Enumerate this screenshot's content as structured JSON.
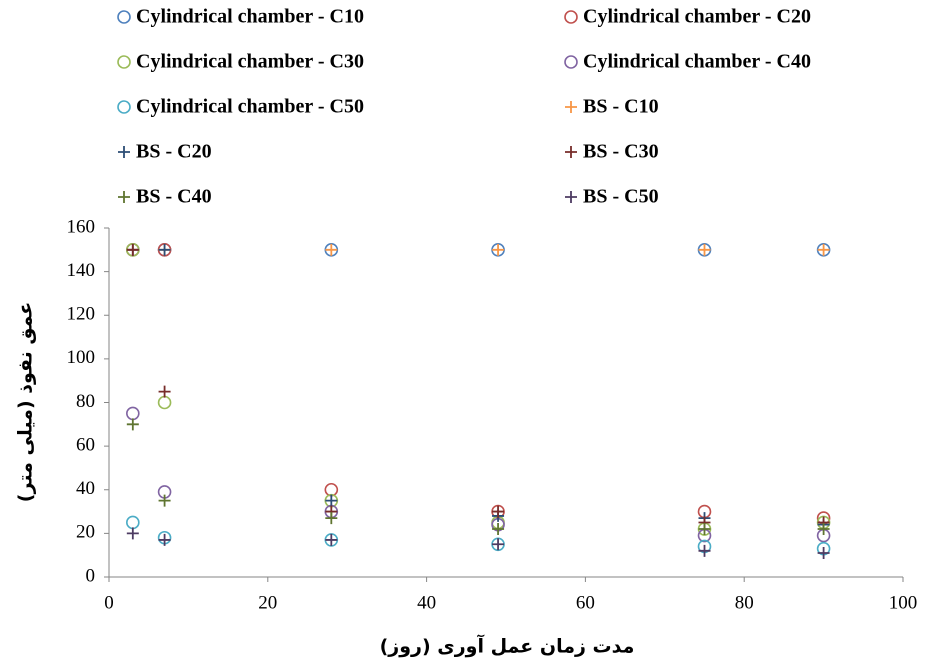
{
  "chart_data": {
    "type": "scatter",
    "x_label": "مدت زمان عمل آوری (روز)",
    "y_label": "عمق نفوذ (میلی متر)",
    "x": [
      3,
      7,
      28,
      49,
      75,
      90
    ],
    "xlim": [
      0,
      100
    ],
    "xticks": [
      0,
      20,
      40,
      60,
      80,
      100
    ],
    "ylim": [
      0,
      160
    ],
    "yticks": [
      0,
      20,
      40,
      60,
      80,
      100,
      120,
      140,
      160
    ],
    "grid": false,
    "legend": "top",
    "series": [
      {
        "name": "Cylindrical chamber - C10",
        "color": "#4f81bd",
        "marker": "circle",
        "values": [
          150,
          150,
          150,
          150,
          150,
          150
        ]
      },
      {
        "name": "Cylindrical chamber - C20",
        "color": "#c0504d",
        "marker": "circle",
        "values": [
          150,
          150,
          40,
          30,
          30,
          27
        ]
      },
      {
        "name": "Cylindrical chamber - C30",
        "color": "#9bbb59",
        "marker": "circle",
        "values": [
          150,
          80,
          35,
          25,
          22,
          25
        ]
      },
      {
        "name": "Cylindrical chamber - C40",
        "color": "#8064a2",
        "marker": "circle",
        "values": [
          75,
          39,
          30,
          24,
          19,
          19
        ]
      },
      {
        "name": "Cylindrical chamber - C50",
        "color": "#4bacc6",
        "marker": "circle",
        "values": [
          25,
          18,
          17,
          15,
          14,
          13
        ]
      },
      {
        "name": "BS - C10",
        "color": "#f79646",
        "marker": "plus",
        "values": [
          150,
          150,
          150,
          150,
          150,
          150
        ]
      },
      {
        "name": "BS - C20",
        "color": "#2c4d75",
        "marker": "plus",
        "values": [
          150,
          150,
          35,
          28,
          27,
          24
        ]
      },
      {
        "name": "BS - C30",
        "color": "#772c2a",
        "marker": "plus",
        "values": [
          150,
          85,
          30,
          30,
          25,
          25
        ]
      },
      {
        "name": "BS - C40",
        "color": "#5f7530",
        "marker": "plus",
        "values": [
          70,
          35,
          27,
          22,
          22,
          22
        ]
      },
      {
        "name": "BS - C50",
        "color": "#4d3b62",
        "marker": "plus",
        "values": [
          20,
          17,
          17,
          15,
          12,
          11
        ]
      }
    ]
  }
}
